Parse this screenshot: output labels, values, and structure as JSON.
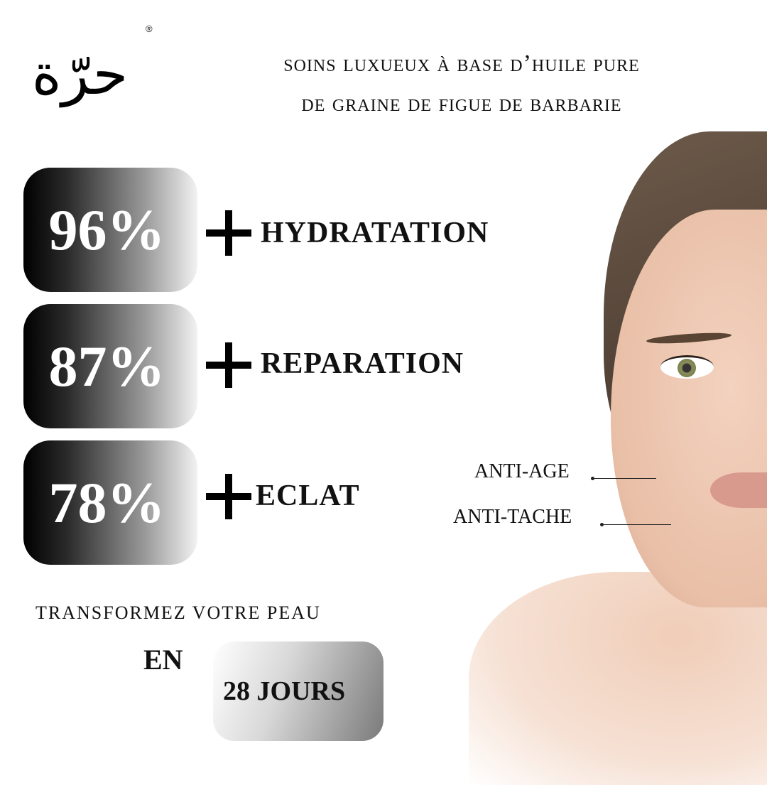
{
  "brand": {
    "logo_text": "حرّة",
    "registered_mark": "®"
  },
  "headline": {
    "line1": "SOINS LUXUEUX À BASE D’HUILE PURE",
    "line2": "DE GRAINE DE FIGUE DE BARBARIE"
  },
  "stats": [
    {
      "percent": "96%",
      "benefit": "HYDRATATION"
    },
    {
      "percent": "87%",
      "benefit": "REPARATION"
    },
    {
      "percent": "78%",
      "benefit": "ECLAT"
    }
  ],
  "callouts": [
    "ANTI-AGE",
    "ANTI-TACHE"
  ],
  "cta": {
    "line": "TRANSFORMEZ VOTRE PEAU",
    "en": "EN",
    "duration": "28 JOURS"
  }
}
